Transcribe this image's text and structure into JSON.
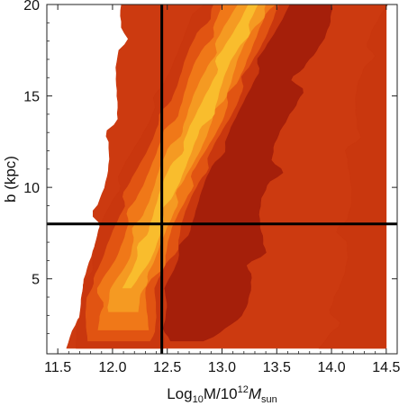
{
  "chart_data": {
    "type": "heatmap",
    "subtype": "filled-contour",
    "title": "",
    "xlabel": {
      "text": "Log",
      "sub1": "10",
      "mid": "M/10",
      "sup": "12",
      "var": "M",
      "sub2": "sun"
    },
    "ylabel": "b (kpc)",
    "xlim": [
      11.4,
      14.6
    ],
    "ylim": [
      0.9,
      20.0
    ],
    "x_ticks": [
      11.5,
      12.0,
      12.5,
      13.0,
      13.5,
      14.0,
      14.5
    ],
    "x_tick_labels": [
      "11.5",
      "12.0",
      "12.5",
      "13.0",
      "13.5",
      "14.0",
      "14.5"
    ],
    "y_ticks": [
      5,
      10,
      15,
      20
    ],
    "y_tick_labels": [
      "5",
      "10",
      "15",
      "20"
    ],
    "data_extent": {
      "x": [
        11.5,
        14.5
      ],
      "y": [
        1.2,
        20.0
      ]
    },
    "contour_colors": [
      "#a51f0a",
      "#c9370e",
      "#e15412",
      "#f07818",
      "#f59a22",
      "#f9bd2d"
    ],
    "outer_color": "#cc3a10",
    "ridge_dark": {
      "left": [
        [
          12.5,
          1.6
        ],
        [
          12.5,
          3.5
        ],
        [
          12.4,
          6.0
        ],
        [
          12.5,
          8.0
        ],
        [
          12.7,
          10.5
        ],
        [
          12.95,
          14.0
        ],
        [
          13.25,
          18.0
        ],
        [
          13.45,
          20.0
        ]
      ],
      "right": [
        [
          14.05,
          20.0
        ],
        [
          13.8,
          17.0
        ],
        [
          13.6,
          14.0
        ],
        [
          13.45,
          11.0
        ],
        [
          13.35,
          8.0
        ],
        [
          13.3,
          5.0
        ],
        [
          13.15,
          3.0
        ],
        [
          12.9,
          1.6
        ]
      ]
    },
    "ridge_bright": [
      [
        12.15,
        4.5
      ],
      [
        12.3,
        6.0
      ],
      [
        12.4,
        8.0
      ],
      [
        12.6,
        11.0
      ],
      [
        12.85,
        14.0
      ],
      [
        13.05,
        17.0
      ],
      [
        13.3,
        20.0
      ]
    ],
    "empty_region_edge": [
      [
        11.6,
        1.2
      ],
      [
        11.7,
        3.0
      ],
      [
        11.8,
        6.0
      ],
      [
        11.9,
        9.5
      ],
      [
        12.0,
        13.0
      ],
      [
        12.05,
        16.0
      ],
      [
        12.1,
        20.0
      ]
    ],
    "right_band_edge": [
      [
        14.5,
        20.0
      ],
      [
        14.3,
        17.0
      ],
      [
        14.2,
        13.0
      ],
      [
        14.15,
        9.0
      ],
      [
        14.1,
        5.0
      ],
      [
        14.0,
        2.5
      ],
      [
        13.9,
        1.2
      ]
    ],
    "reference_lines": {
      "x": 12.45,
      "y": 8.0
    }
  }
}
